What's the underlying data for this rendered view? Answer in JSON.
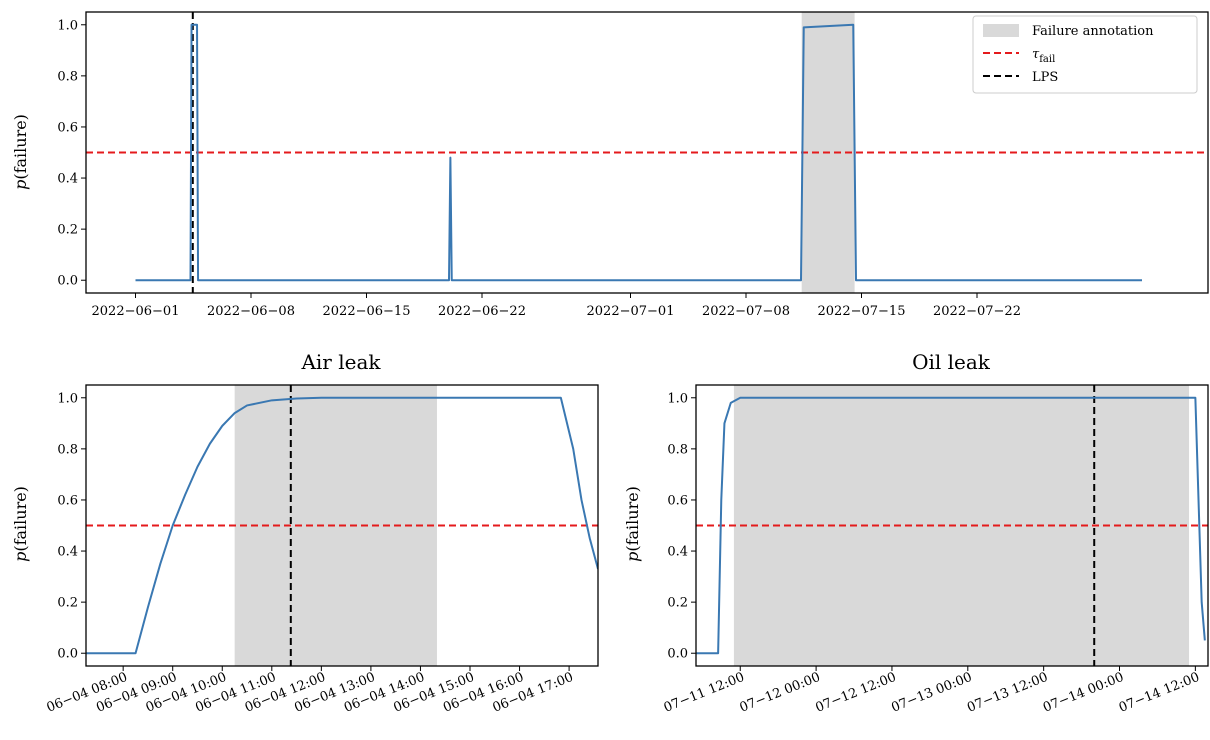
{
  "colors": {
    "series": "#3a78b2",
    "threshold": "#e41a1c",
    "lps": "#000000",
    "annotation": "#d9d9d9"
  },
  "legend": {
    "placement": "top-right",
    "entries": {
      "annotation": "Failure annotation",
      "threshold": "τ",
      "threshold_sub": "fail",
      "lps": "LPS"
    }
  },
  "chart_data": [
    {
      "type": "line",
      "title": "",
      "xlabel": "",
      "ylabel": "p(failure)",
      "xlim": [
        "2022-05-29",
        "2022-08-05"
      ],
      "ylim": [
        -0.05,
        1.05
      ],
      "grid": false,
      "x_ticks": [
        "2022-06-01",
        "2022-06-08",
        "2022-06-15",
        "2022-06-22",
        "2022-07-01",
        "2022-07-08",
        "2022-07-15",
        "2022-07-22"
      ],
      "y_ticks": [
        "0.0",
        "0.2",
        "0.4",
        "0.6",
        "0.8",
        "1.0"
      ],
      "threshold": 0.5,
      "lps": [
        "2022-06-04 11:20"
      ],
      "annotations": [
        {
          "start": "2022-07-11 09:00",
          "end": "2022-07-14 14:00"
        }
      ],
      "series": [
        {
          "points": [
            [
              "2022-06-01 00:00",
              0.0
            ],
            [
              "2022-06-04 08:00",
              0.0
            ],
            [
              "2022-06-04 09:30",
              1.0
            ],
            [
              "2022-06-04 17:30",
              1.0
            ],
            [
              "2022-06-04 19:00",
              0.0
            ],
            [
              "2022-06-20 00:00",
              0.0
            ],
            [
              "2022-06-20 02:00",
              0.48
            ],
            [
              "2022-06-20 04:00",
              0.0
            ],
            [
              "2022-07-11 08:00",
              0.0
            ],
            [
              "2022-07-11 12:00",
              0.99
            ],
            [
              "2022-07-14 12:00",
              1.0
            ],
            [
              "2022-07-14 16:00",
              0.0
            ],
            [
              "2022-08-01 00:00",
              0.0
            ]
          ]
        }
      ]
    },
    {
      "type": "line",
      "title": "Air leak",
      "xlabel": "",
      "ylabel": "p(failure)",
      "xlim": [
        "2022-06-04 07:15",
        "2022-06-04 17:35"
      ],
      "ylim": [
        -0.05,
        1.05
      ],
      "grid": false,
      "x_ticks": [
        "06−04 08:00",
        "06−04 09:00",
        "06−04 10:00",
        "06−04 11:00",
        "06−04 12:00",
        "06−04 13:00",
        "06−04 14:00",
        "06−04 15:00",
        "06−04 16:00",
        "06−04 17:00"
      ],
      "x_tick_values": [
        "2022-06-04 08:00",
        "2022-06-04 09:00",
        "2022-06-04 10:00",
        "2022-06-04 11:00",
        "2022-06-04 12:00",
        "2022-06-04 13:00",
        "2022-06-04 14:00",
        "2022-06-04 15:00",
        "2022-06-04 16:00",
        "2022-06-04 17:00"
      ],
      "y_ticks": [
        "0.0",
        "0.2",
        "0.4",
        "0.6",
        "0.8",
        "1.0"
      ],
      "threshold": 0.5,
      "lps": [
        "2022-06-04 11:23"
      ],
      "annotations": [
        {
          "start": "2022-06-04 10:15",
          "end": "2022-06-04 14:20"
        }
      ],
      "series": [
        {
          "points": [
            [
              "2022-06-04 07:15",
              0.0
            ],
            [
              "2022-06-04 08:15",
              0.0
            ],
            [
              "2022-06-04 08:30",
              0.18
            ],
            [
              "2022-06-04 08:45",
              0.35
            ],
            [
              "2022-06-04 09:00",
              0.5
            ],
            [
              "2022-06-04 09:15",
              0.62
            ],
            [
              "2022-06-04 09:30",
              0.73
            ],
            [
              "2022-06-04 09:45",
              0.82
            ],
            [
              "2022-06-04 10:00",
              0.89
            ],
            [
              "2022-06-04 10:15",
              0.94
            ],
            [
              "2022-06-04 10:30",
              0.97
            ],
            [
              "2022-06-04 11:00",
              0.99
            ],
            [
              "2022-06-04 11:30",
              0.997
            ],
            [
              "2022-06-04 12:00",
              1.0
            ],
            [
              "2022-06-04 16:50",
              1.0
            ],
            [
              "2022-06-04 17:05",
              0.8
            ],
            [
              "2022-06-04 17:15",
              0.6
            ],
            [
              "2022-06-04 17:25",
              0.45
            ],
            [
              "2022-06-04 17:35",
              0.33
            ]
          ]
        }
      ]
    },
    {
      "type": "line",
      "title": "Oil leak",
      "xlabel": "",
      "ylabel": "p(failure)",
      "xlim": [
        "2022-07-11 05:00",
        "2022-07-14 14:00"
      ],
      "ylim": [
        -0.05,
        1.05
      ],
      "grid": false,
      "x_ticks": [
        "07−11 12:00",
        "07−12 00:00",
        "07−12 12:00",
        "07−13 00:00",
        "07−13 12:00",
        "07−14 00:00",
        "07−14 12:00"
      ],
      "x_tick_values": [
        "2022-07-11 12:00",
        "2022-07-12 00:00",
        "2022-07-12 12:00",
        "2022-07-13 00:00",
        "2022-07-13 12:00",
        "2022-07-14 00:00",
        "2022-07-14 12:00"
      ],
      "y_ticks": [
        "0.0",
        "0.2",
        "0.4",
        "0.6",
        "0.8",
        "1.0"
      ],
      "threshold": 0.5,
      "lps": [
        "2022-07-13 20:00"
      ],
      "annotations": [
        {
          "start": "2022-07-11 11:00",
          "end": "2022-07-14 11:00"
        }
      ],
      "series": [
        {
          "points": [
            [
              "2022-07-11 05:00",
              0.0
            ],
            [
              "2022-07-11 08:30",
              0.0
            ],
            [
              "2022-07-11 09:00",
              0.6
            ],
            [
              "2022-07-11 09:30",
              0.9
            ],
            [
              "2022-07-11 10:30",
              0.98
            ],
            [
              "2022-07-11 12:00",
              1.0
            ],
            [
              "2022-07-14 12:00",
              1.0
            ],
            [
              "2022-07-14 12:30",
              0.6
            ],
            [
              "2022-07-14 13:00",
              0.2
            ],
            [
              "2022-07-14 13:30",
              0.05
            ]
          ]
        }
      ]
    }
  ]
}
